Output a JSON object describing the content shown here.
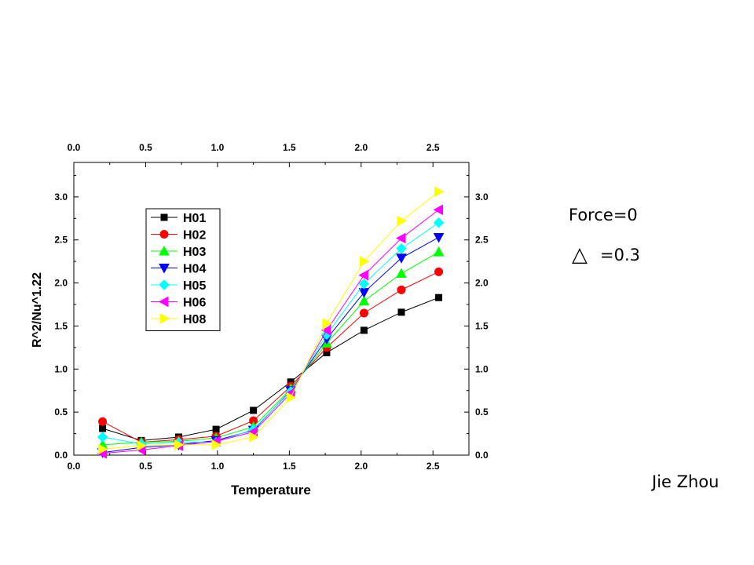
{
  "chart_data": {
    "type": "line",
    "xlabel": "Temperature",
    "ylabel": "R^2/Nu^1.22",
    "xlim": [
      0.0,
      2.75
    ],
    "ylim": [
      0.0,
      3.4
    ],
    "xticks": [
      "0.0",
      "0.5",
      "1.0",
      "1.5",
      "2.0",
      "2.5"
    ],
    "yticks": [
      "0.0",
      "0.5",
      "1.0",
      "1.5",
      "2.0",
      "2.5",
      "3.0"
    ],
    "legend_position": "top-left",
    "x": [
      0.2,
      0.47,
      0.73,
      0.99,
      1.25,
      1.51,
      1.76,
      2.02,
      2.28,
      2.54
    ],
    "series": [
      {
        "name": "H01",
        "color": "#000000",
        "marker": "square",
        "values": [
          0.31,
          0.17,
          0.21,
          0.3,
          0.52,
          0.85,
          1.19,
          1.45,
          1.66,
          1.83
        ]
      },
      {
        "name": "H02",
        "color": "#ff0000",
        "marker": "circle",
        "values": [
          0.39,
          0.15,
          0.18,
          0.22,
          0.4,
          0.8,
          1.25,
          1.65,
          1.92,
          2.13
        ]
      },
      {
        "name": "H03",
        "color": "#00ff00",
        "marker": "triangle-up",
        "values": [
          0.12,
          0.15,
          0.16,
          0.2,
          0.33,
          0.77,
          1.3,
          1.79,
          2.11,
          2.36
        ]
      },
      {
        "name": "H04",
        "color": "#0000ff",
        "marker": "triangle-down",
        "values": [
          0.03,
          0.09,
          0.12,
          0.17,
          0.29,
          0.75,
          1.35,
          1.89,
          2.29,
          2.53
        ]
      },
      {
        "name": "H05",
        "color": "#00ffff",
        "marker": "diamond",
        "values": [
          0.21,
          0.13,
          0.15,
          0.15,
          0.3,
          0.74,
          1.4,
          1.99,
          2.4,
          2.7
        ]
      },
      {
        "name": "H06",
        "color": "#ff00ff",
        "marker": "triangle-left",
        "values": [
          0.02,
          0.06,
          0.11,
          0.16,
          0.27,
          0.72,
          1.45,
          2.09,
          2.52,
          2.85
        ]
      },
      {
        "name": "H08",
        "color": "#ffff00",
        "marker": "triangle-right",
        "values": [
          0.07,
          0.11,
          0.12,
          0.12,
          0.21,
          0.67,
          1.53,
          2.25,
          2.72,
          3.06
        ]
      }
    ]
  },
  "annotations": {
    "force": "Force=0",
    "delta_symbol": "△",
    "delta_value": "=0.3",
    "author": "Jie Zhou"
  }
}
